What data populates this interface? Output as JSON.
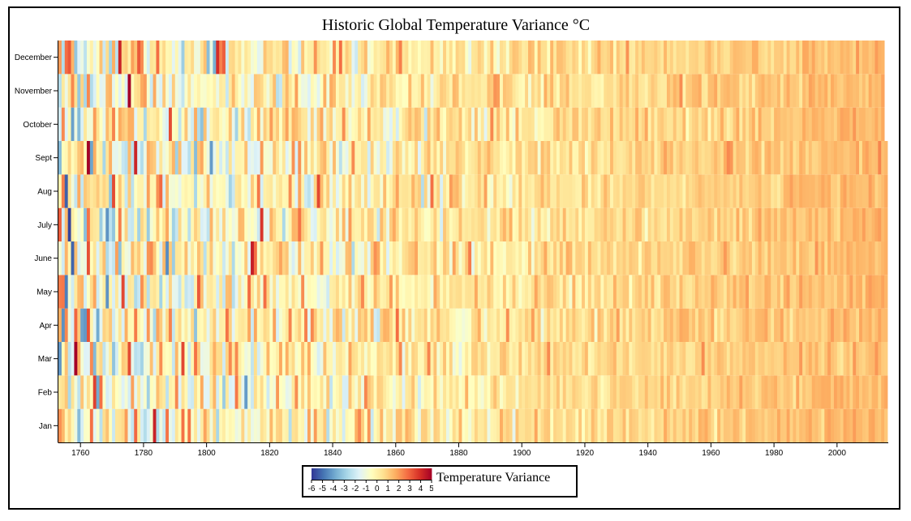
{
  "chart_data": {
    "type": "heatmap",
    "title": "Historic Global Temperature Variance °C",
    "xlabel": "",
    "ylabel": "",
    "x_range": [
      1753,
      2015
    ],
    "x_ticks": [
      1760,
      1780,
      1800,
      1820,
      1840,
      1860,
      1880,
      1900,
      1920,
      1940,
      1960,
      1980,
      2000
    ],
    "y_categories": [
      "Jan",
      "Feb",
      "Mar",
      "Apr",
      "May",
      "June",
      "July",
      "Aug",
      "Sept",
      "October",
      "November",
      "December"
    ],
    "color_scale": {
      "name": "Temperature Variance",
      "domain": [
        -6,
        5
      ],
      "ticks": [
        "-6",
        "-5",
        "-4",
        "-3",
        "-2",
        "-1",
        "0",
        "1",
        "2",
        "3",
        "4",
        "5"
      ],
      "colors": [
        "#313695",
        "#4575b4",
        "#74add1",
        "#abd9e9",
        "#e0f3f8",
        "#ffffbf",
        "#fee090",
        "#fdae61",
        "#f46d43",
        "#d73027",
        "#a50026"
      ]
    },
    "value_trend": {
      "start_mean": -0.4,
      "end_mean": 1.5,
      "early_spread": 1.8,
      "late_spread": 0.35
    }
  }
}
